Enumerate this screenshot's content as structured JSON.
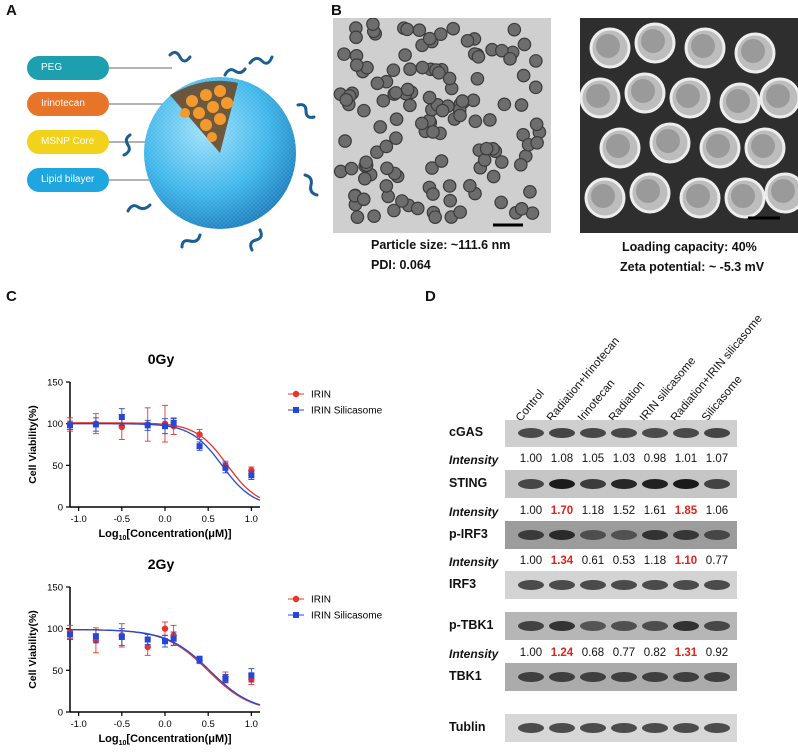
{
  "panels": {
    "a": "A",
    "b": "B",
    "c": "C",
    "d": "D"
  },
  "colors": {
    "peg": "#1e9fb0",
    "irinotecan": "#e8742a",
    "core": "#f2d21a",
    "lipid": "#1fa6e0",
    "irin_series": "#e8342a",
    "silicasome_series": "#2348d8",
    "highlight": "#e0241b"
  },
  "panel_a": {
    "labels": [
      {
        "text": "PEG",
        "color": "peg"
      },
      {
        "text": "Irinotecan",
        "color": "irinotecan"
      },
      {
        "text": "MSNP  Core",
        "color": "core"
      },
      {
        "text": "Lipid bilayer",
        "color": "lipid"
      }
    ]
  },
  "panel_b": {
    "left_caption_1": "Particle size: ~111.6 nm",
    "left_caption_2": "PDI: 0.064",
    "right_caption_1": "Loading capacity: 40%",
    "right_caption_2": "Zeta potential: ~ -5.3 mV"
  },
  "chart_data": [
    {
      "type": "scatter",
      "title": "0Gy",
      "xlabel_main": "Log",
      "xlabel_sub": "10",
      "xlabel_rest": "[Concentration(μM)]",
      "ylabel": "Cell Viability(%)",
      "xlim": [
        -1.1,
        1.1
      ],
      "ylim": [
        0,
        150
      ],
      "xticks": [
        "-1.0",
        "-0.5",
        "0.0",
        "0.5",
        "1.0"
      ],
      "yticks": [
        "0",
        "50",
        "100",
        "150"
      ],
      "series": [
        {
          "name": "IRIN",
          "x": [
            -1.1,
            -0.8,
            -0.5,
            -0.2,
            0.0,
            0.1,
            0.4,
            0.7,
            1.0
          ],
          "y": [
            99,
            100,
            96,
            99,
            100,
            97,
            87,
            50,
            44
          ],
          "err": [
            8,
            12,
            15,
            20,
            22,
            10,
            6,
            5,
            4
          ],
          "fit_top": 101,
          "fit_ic50": 0.72,
          "fit_slope": 1.5
        },
        {
          "name": "IRIN Silicasome",
          "x": [
            -1.1,
            -0.8,
            -0.5,
            -0.2,
            0.0,
            0.1,
            0.4,
            0.7,
            1.0
          ],
          "y": [
            98,
            99,
            108,
            98,
            97,
            101,
            73,
            47,
            38
          ],
          "err": [
            5,
            8,
            10,
            6,
            9,
            5,
            5,
            6,
            5
          ],
          "fit_top": 100,
          "fit_ic50": 0.66,
          "fit_slope": 1.5
        }
      ]
    },
    {
      "type": "scatter",
      "title": "2Gy",
      "xlabel_main": "Log",
      "xlabel_sub": "10",
      "xlabel_rest": "[Concentration(μM)]",
      "ylabel": "Cell Viability(%)",
      "xlim": [
        -1.1,
        1.1
      ],
      "ylim": [
        0,
        150
      ],
      "xticks": [
        "-1.0",
        "-0.5",
        "0.0",
        "0.5",
        "1.0"
      ],
      "yticks": [
        "0",
        "50",
        "100",
        "150"
      ],
      "series": [
        {
          "name": "IRIN",
          "x": [
            -1.1,
            -0.8,
            -0.5,
            -0.2,
            0.0,
            0.1,
            0.4,
            0.7,
            1.0
          ],
          "y": [
            96,
            86,
            92,
            78,
            100,
            92,
            62,
            42,
            39
          ],
          "err": [
            8,
            15,
            14,
            10,
            8,
            12,
            4,
            6,
            6
          ],
          "fit_top": 99,
          "fit_ic50": 0.5,
          "fit_slope": 1.1
        },
        {
          "name": "IRIN Silicasome",
          "x": [
            -1.1,
            -0.8,
            -0.5,
            -0.2,
            0.0,
            0.1,
            0.4,
            0.7,
            1.0
          ],
          "y": [
            93,
            91,
            90,
            87,
            85,
            88,
            63,
            40,
            44
          ],
          "err": [
            6,
            8,
            10,
            6,
            7,
            8,
            4,
            5,
            8
          ],
          "fit_top": 99,
          "fit_ic50": 0.52,
          "fit_slope": 1.1
        }
      ]
    }
  ],
  "panel_d": {
    "lanes": [
      "Control",
      "Radiation+Irinotecan",
      "Irinotecan",
      "Radiation",
      "IRIN silicasome",
      "Radiation+IRIN silicasome",
      "Silicasome"
    ],
    "intensity_label": "Intensity",
    "rows": [
      {
        "label": "cGAS",
        "intensities": [
          "1.00",
          "1.08",
          "1.05",
          "1.03",
          "0.98",
          "1.01",
          "1.07"
        ],
        "highlight": []
      },
      {
        "label": "STING",
        "intensities": [
          "1.00",
          "1.70",
          "1.18",
          "1.52",
          "1.61",
          "1.85",
          "1.06"
        ],
        "highlight": [
          1,
          5
        ]
      },
      {
        "label": "p-IRF3",
        "intensities": [
          "1.00",
          "1.34",
          "0.61",
          "0.53",
          "1.18",
          "1.10",
          "0.77"
        ],
        "highlight": [
          1,
          5
        ]
      },
      {
        "label": "IRF3",
        "intensities": [],
        "highlight": []
      },
      {
        "label": "p-TBK1",
        "intensities": [
          "1.00",
          "1.24",
          "0.68",
          "0.77",
          "0.82",
          "1.31",
          "0.92"
        ],
        "highlight": [
          1,
          5
        ]
      },
      {
        "label": "TBK1",
        "intensities": [],
        "highlight": []
      },
      {
        "label": "Tublin",
        "intensities": [],
        "highlight": []
      }
    ]
  }
}
